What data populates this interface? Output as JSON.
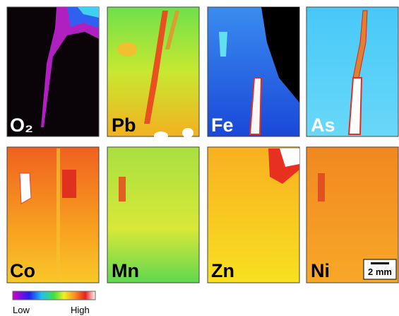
{
  "panels": [
    {
      "label": "O₂"
    },
    {
      "label": "Pb"
    },
    {
      "label": "Fe"
    },
    {
      "label": "As"
    },
    {
      "label": "Co"
    },
    {
      "label": "Mn"
    },
    {
      "label": "Zn"
    },
    {
      "label": "Ni"
    }
  ],
  "scale_bar": {
    "label": "2 mm"
  },
  "colorbar": {
    "low": "Low",
    "high": "High"
  }
}
